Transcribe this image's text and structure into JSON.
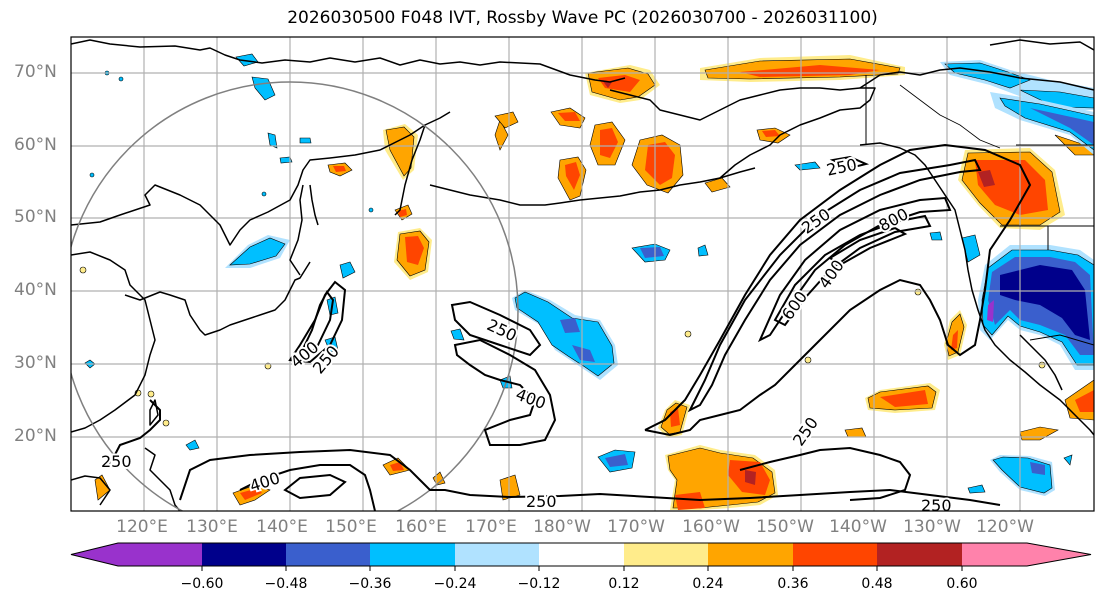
{
  "title": "2026030500 F048 IVT, Rossby Wave PC (2026030700 - 2026031100)",
  "map": {
    "domain_lon": [
      "110°E",
      "110°W"
    ],
    "domain_lat": [
      "10°N",
      "75°N"
    ],
    "lat_labels": [
      "70°N",
      "60°N",
      "50°N",
      "40°N",
      "30°N",
      "20°N"
    ],
    "lon_labels": [
      "120°E",
      "130°E",
      "140°E",
      "150°E",
      "160°E",
      "170°E",
      "180°W",
      "170°W",
      "160°W",
      "150°W",
      "140°W",
      "130°W",
      "120°W"
    ],
    "ivt_contour_levels": [
      "250",
      "400",
      "600",
      "800"
    ],
    "contour_labels": [
      {
        "text": "250",
        "region": "Bering Sea south of Alaska"
      },
      {
        "text": "250",
        "region": "central North Pacific jet"
      },
      {
        "text": "800",
        "region": "atmospheric river core"
      },
      {
        "text": "400",
        "region": "atmospheric river"
      },
      {
        "text": "600",
        "region": "atmospheric river"
      },
      {
        "text": "250",
        "region": "subtropical east Pacific"
      },
      {
        "text": "250",
        "region": "west of date line"
      },
      {
        "text": "400",
        "region": "west of date line"
      },
      {
        "text": "400",
        "region": "east of Japan"
      },
      {
        "text": "250",
        "region": "east of Japan"
      },
      {
        "text": "250",
        "region": "Philippine Sea"
      },
      {
        "text": "400",
        "region": "western tropical Pacific"
      },
      {
        "text": "250",
        "region": "tropical central Pacific"
      },
      {
        "text": "250",
        "region": "tropical east Pacific"
      }
    ],
    "reference_circle": "gray circle centered near 35°N 145°E"
  },
  "colorbar": {
    "ticks": [
      "−0.60",
      "−0.48",
      "−0.36",
      "−0.24",
      "−0.12",
      "0.12",
      "0.24",
      "0.36",
      "0.48",
      "0.60"
    ],
    "bins": [
      {
        "range": "< -0.60",
        "color": "#9932CC"
      },
      {
        "range": "-0.60 to -0.48",
        "color": "#00008B"
      },
      {
        "range": "-0.48 to -0.36",
        "color": "#3A5FCD"
      },
      {
        "range": "-0.36 to -0.24",
        "color": "#00BFFF"
      },
      {
        "range": "-0.24 to -0.12",
        "color": "#B0E2FF"
      },
      {
        "range": "-0.12 to 0.12",
        "color": "#FFFFFF"
      },
      {
        "range": "0.12 to 0.24",
        "color": "#FFEC8B"
      },
      {
        "range": "0.24 to 0.36",
        "color": "#FFA500"
      },
      {
        "range": "0.36 to 0.48",
        "color": "#FF4500"
      },
      {
        "range": "0.48 to 0.60",
        "color": "#B22222"
      },
      {
        "range": "> 0.60",
        "color": "#FF82AB"
      }
    ]
  }
}
